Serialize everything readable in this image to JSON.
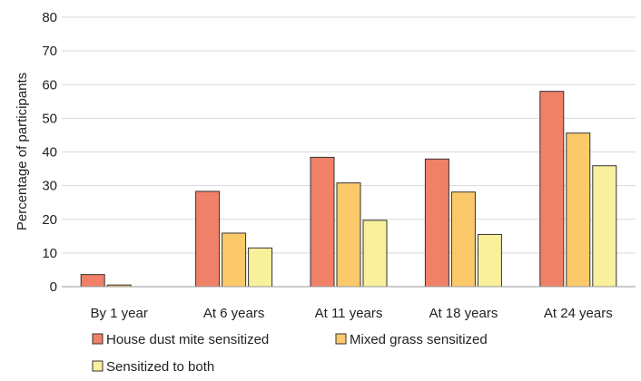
{
  "chart_data": {
    "type": "bar",
    "title": "",
    "xlabel": "",
    "ylabel": "Percentage of participants",
    "ylim": [
      0,
      80
    ],
    "yticks": [
      0,
      10,
      20,
      30,
      40,
      50,
      60,
      70,
      80
    ],
    "grid": true,
    "legend_position": "bottom",
    "categories": [
      "By 1 year",
      "At 6 years",
      "At 11 years",
      "At 18 years",
      "At 24 years"
    ],
    "series": [
      {
        "name": "House dust mite sensitized",
        "color": "#f08068",
        "values": [
          3.6,
          28.3,
          38.4,
          37.9,
          58.0
        ]
      },
      {
        "name": "Mixed grass sensitized",
        "color": "#fcc96a",
        "values": [
          0.5,
          15.9,
          30.8,
          28.1,
          45.6
        ]
      },
      {
        "name": "Sensitized to both",
        "color": "#f8f09a",
        "values": [
          0.0,
          11.5,
          19.7,
          15.5,
          35.9
        ]
      }
    ]
  }
}
